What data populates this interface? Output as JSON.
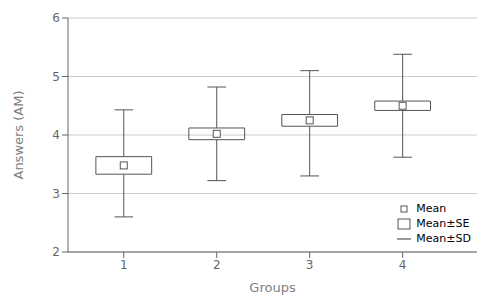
{
  "chart_data": {
    "type": "box",
    "xlabel": "Groups",
    "ylabel": "Answers (AM)",
    "x": [
      1,
      2,
      3,
      4
    ],
    "xlim": [
      0.4,
      4.8
    ],
    "xticks": [
      1,
      2,
      3,
      4
    ],
    "ylim": [
      2,
      6
    ],
    "yticks": [
      2,
      3,
      4,
      5,
      6
    ],
    "color": "#555555",
    "grid": true,
    "legend": "lower right",
    "series": [
      {
        "name": "Mean",
        "values": [
          3.48,
          4.02,
          4.25,
          4.5
        ]
      },
      {
        "name": "Mean±SE",
        "low": [
          3.33,
          3.92,
          4.15,
          4.42
        ],
        "high": [
          3.63,
          4.12,
          4.35,
          4.58
        ]
      },
      {
        "name": "Mean±SD",
        "low": [
          2.6,
          3.22,
          3.3,
          3.62
        ],
        "high": [
          4.43,
          4.82,
          5.1,
          5.38
        ]
      }
    ]
  }
}
